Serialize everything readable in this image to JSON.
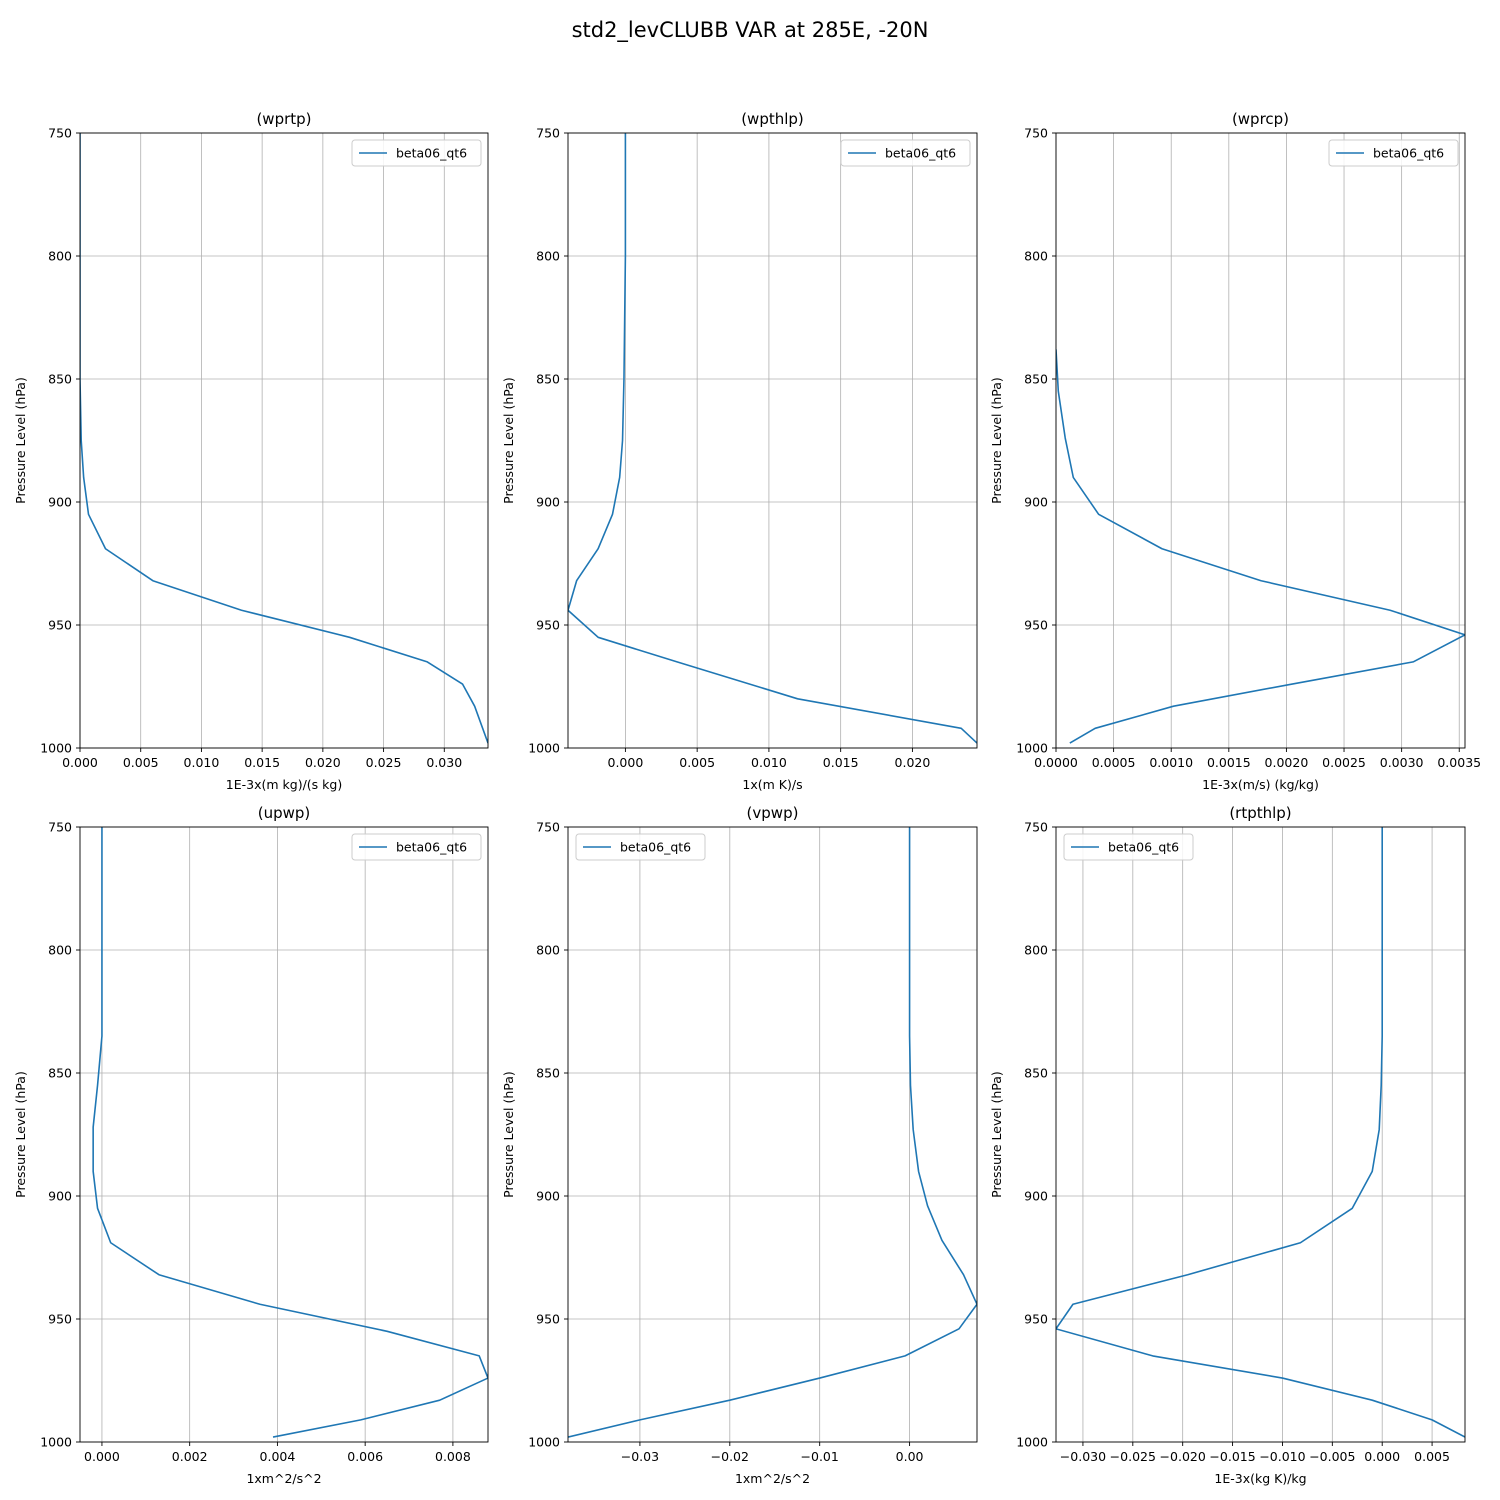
{
  "figure": {
    "title": "std2_levCLUBB VAR at 285E, -20N"
  },
  "chart_data": [
    {
      "type": "line",
      "title": "(wprtp)",
      "xlabel": "1E-3x(m kg)/(s kg)",
      "ylabel": "Pressure Level (hPa)",
      "xlim": [
        0.0,
        0.0336
      ],
      "ylim": [
        1000,
        750
      ],
      "y_inverted": true,
      "grid": true,
      "legend": "top-right",
      "color": "#1f77b4",
      "xticks": [
        0.0,
        0.005,
        0.01,
        0.015,
        0.02,
        0.025,
        0.03
      ],
      "xtick_labels": [
        "0.000",
        "0.005",
        "0.010",
        "0.015",
        "0.020",
        "0.025",
        "0.030"
      ],
      "yticks": [
        750,
        800,
        850,
        900,
        950,
        1000
      ],
      "ytick_labels": [
        "750",
        "800",
        "850",
        "900",
        "950",
        "1000"
      ],
      "series": [
        {
          "name": "beta06_qt6",
          "x": [
            0,
            0,
            0,
            0.0001,
            0.0003,
            0.0007,
            0.0021,
            0.006,
            0.0133,
            0.0222,
            0.0286,
            0.0315,
            0.0325,
            0.0336
          ],
          "y": [
            750,
            800,
            850,
            875,
            890,
            905,
            919,
            932,
            944,
            955,
            965,
            974,
            983,
            998
          ]
        }
      ]
    },
    {
      "type": "line",
      "title": "(wpthlp)",
      "xlabel": "1x(m K)/s",
      "ylabel": "Pressure Level (hPa)",
      "xlim": [
        -0.004,
        0.0245
      ],
      "ylim": [
        1000,
        750
      ],
      "y_inverted": true,
      "grid": true,
      "legend": "top-right",
      "color": "#1f77b4",
      "xticks": [
        0.0,
        0.005,
        0.01,
        0.015,
        0.02
      ],
      "xtick_labels": [
        "0.000",
        "0.005",
        "0.010",
        "0.015",
        "0.020"
      ],
      "yticks": [
        750,
        800,
        850,
        900,
        950,
        1000
      ],
      "ytick_labels": [
        "750",
        "800",
        "850",
        "900",
        "950",
        "1000"
      ],
      "series": [
        {
          "name": "beta06_qt6",
          "x": [
            0,
            0,
            -0.0001,
            -0.0002,
            -0.0004,
            -0.0009,
            -0.0019,
            -0.0034,
            -0.004,
            -0.0019,
            0.0036,
            0.012,
            0.0234,
            0.0245
          ],
          "y": [
            750,
            800,
            850,
            875,
            890,
            905,
            919,
            932,
            944,
            955,
            965,
            980,
            992,
            998
          ]
        }
      ]
    },
    {
      "type": "line",
      "title": "(wprcp)",
      "xlabel": "1E-3x(m/s) (kg/kg)",
      "ylabel": "Pressure Level (hPa)",
      "xlim": [
        0.0,
        0.00355
      ],
      "ylim": [
        1000,
        750
      ],
      "y_inverted": true,
      "grid": true,
      "legend": "top-right",
      "color": "#1f77b4",
      "xticks": [
        0.0,
        0.0005,
        0.001,
        0.0015,
        0.002,
        0.0025,
        0.003,
        0.0035
      ],
      "xtick_labels": [
        "0.0000",
        "0.0005",
        "0.0010",
        "0.0015",
        "0.0020",
        "0.0025",
        "0.0030",
        "0.0035"
      ],
      "yticks": [
        750,
        800,
        850,
        900,
        950,
        1000
      ],
      "ytick_labels": [
        "750",
        "800",
        "850",
        "900",
        "950",
        "1000"
      ],
      "series": [
        {
          "name": "beta06_qt6",
          "x": [
            0,
            2e-05,
            8e-05,
            0.00015,
            0.00037,
            0.00092,
            0.00178,
            0.0029,
            0.00355,
            0.0031,
            0.00205,
            0.00102,
            0.00034,
            0.00012
          ],
          "y": [
            838,
            855,
            874,
            890,
            905,
            919,
            932,
            944,
            954,
            965,
            974,
            983,
            992,
            998
          ]
        }
      ]
    },
    {
      "type": "line",
      "title": "(upwp)",
      "xlabel": "1xm^2/s^2",
      "ylabel": "Pressure Level (hPa)",
      "xlim": [
        -0.0005,
        0.0088
      ],
      "ylim": [
        1000,
        750
      ],
      "y_inverted": true,
      "grid": true,
      "legend": "top-right",
      "color": "#1f77b4",
      "xticks": [
        0.0,
        0.002,
        0.004,
        0.006,
        0.008
      ],
      "xtick_labels": [
        "0.000",
        "0.002",
        "0.004",
        "0.006",
        "0.008"
      ],
      "yticks": [
        750,
        800,
        850,
        900,
        950,
        1000
      ],
      "ytick_labels": [
        "750",
        "800",
        "850",
        "900",
        "950",
        "1000"
      ],
      "series": [
        {
          "name": "beta06_qt6",
          "x": [
            0.0,
            0.0,
            0.0,
            -0.0001,
            -0.0002,
            -0.0002,
            -0.0001,
            0.0002,
            0.0013,
            0.0036,
            0.0065,
            0.0086,
            0.0088,
            0.0077,
            0.0059,
            0.0039
          ],
          "y": [
            750,
            800,
            835,
            855,
            872,
            890,
            905,
            919,
            932,
            944,
            955,
            965,
            974,
            983,
            991,
            998
          ]
        }
      ]
    },
    {
      "type": "line",
      "title": "(vpwp)",
      "xlabel": "1xm^2/s^2",
      "ylabel": "Pressure Level (hPa)",
      "xlim": [
        -0.038,
        0.0075
      ],
      "ylim": [
        1000,
        750
      ],
      "y_inverted": true,
      "grid": true,
      "legend": "top-left",
      "color": "#1f77b4",
      "xticks": [
        -0.03,
        -0.02,
        -0.01,
        0.0
      ],
      "xtick_labels": [
        "−0.03",
        "−0.02",
        "−0.01",
        "0.00"
      ],
      "yticks": [
        750,
        800,
        850,
        900,
        950,
        1000
      ],
      "ytick_labels": [
        "750",
        "800",
        "850",
        "900",
        "950",
        "1000"
      ],
      "series": [
        {
          "name": "beta06_qt6",
          "x": [
            0.0,
            0.0,
            0.0,
            0.0001,
            0.0004,
            0.001,
            0.002,
            0.0036,
            0.006,
            0.0075,
            0.0055,
            -0.0005,
            -0.01,
            -0.02,
            -0.03,
            -0.038
          ],
          "y": [
            750,
            800,
            835,
            855,
            873,
            890,
            904,
            918,
            932,
            944,
            954,
            965,
            974,
            983,
            991,
            998
          ]
        }
      ]
    },
    {
      "type": "line",
      "title": "(rtpthlp)",
      "xlabel": "1E-3x(kg K)/kg",
      "ylabel": "Pressure Level (hPa)",
      "xlim": [
        -0.0327,
        0.0083
      ],
      "ylim": [
        1000,
        750
      ],
      "y_inverted": true,
      "grid": true,
      "legend": "top-left",
      "color": "#1f77b4",
      "xticks": [
        -0.03,
        -0.025,
        -0.02,
        -0.015,
        -0.01,
        -0.005,
        0.0,
        0.005
      ],
      "xtick_labels": [
        "−0.030",
        "−0.025",
        "−0.020",
        "−0.015",
        "−0.010",
        "−0.005",
        "0.000",
        "0.005"
      ],
      "yticks": [
        750,
        800,
        850,
        900,
        950,
        1000
      ],
      "ytick_labels": [
        "750",
        "800",
        "850",
        "900",
        "950",
        "1000"
      ],
      "series": [
        {
          "name": "beta06_qt6",
          "x": [
            0.0,
            0.0,
            0.0,
            -0.0001,
            -0.0003,
            -0.001,
            -0.003,
            -0.0082,
            -0.0195,
            -0.031,
            -0.0327,
            -0.023,
            -0.01,
            -0.001,
            0.005,
            0.0083
          ],
          "y": [
            750,
            800,
            835,
            855,
            873,
            890,
            905,
            919,
            932,
            944,
            954,
            965,
            974,
            983,
            991,
            998
          ]
        }
      ]
    }
  ]
}
